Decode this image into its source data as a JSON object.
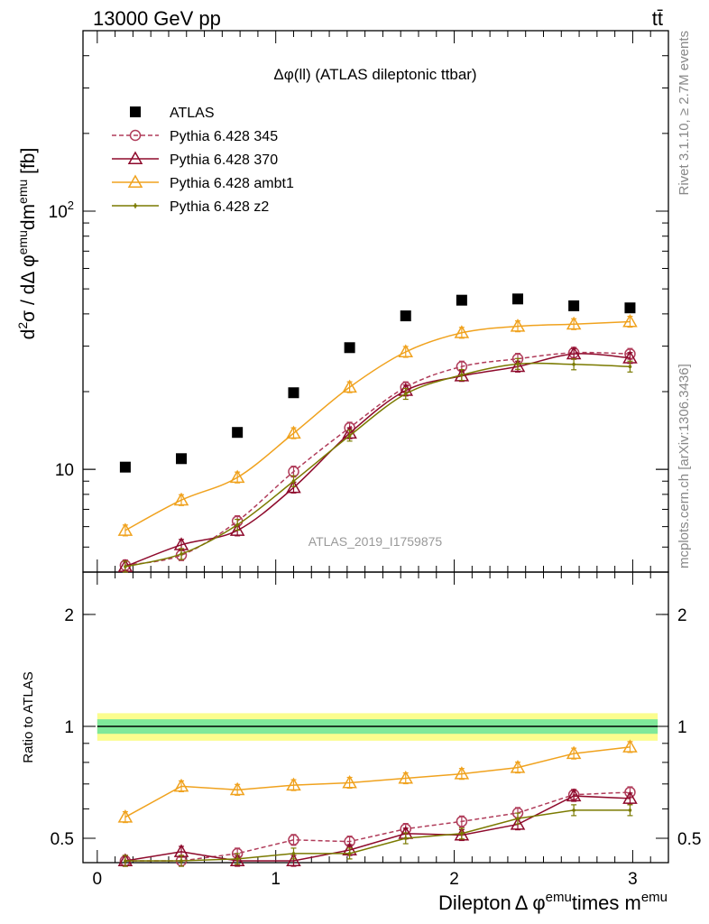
{
  "header": {
    "left": "13000 GeV pp",
    "right": "tt̄"
  },
  "side_labels": {
    "rivet": "Rivet 3.1.10, ≥ 2.7M events",
    "mcplots": "mcplots.cern.ch [arXiv:1306.3436]"
  },
  "chart_data": [
    {
      "type": "scatter",
      "title": "Δφ(ll) (ATLAS dileptonic ttbar)",
      "watermark": "ATLAS_2019_I1759875",
      "ylabel_parts": {
        "d2": "d",
        "sup2": "2",
        "sigma": "σ / dΔ φ",
        "sup_emu": "emu",
        "dm": "dm",
        "sup_emu2": "emu",
        "unit": " [fb]"
      },
      "yscale": "log",
      "ylim": [
        4,
        500
      ],
      "xlim": [
        -0.08,
        3.2
      ],
      "yticks": [
        {
          "value": 10,
          "label": "10"
        },
        {
          "value": 100,
          "label": "10",
          "sup": "2"
        }
      ],
      "x": [
        0.157,
        0.471,
        0.785,
        1.1,
        1.414,
        1.728,
        2.042,
        2.356,
        2.67,
        2.985
      ],
      "series": [
        {
          "name": "ATLAS",
          "color": "#000000",
          "marker": "square",
          "line": "none",
          "values": [
            10.2,
            11.0,
            13.9,
            19.8,
            29.6,
            39.3,
            45.2,
            45.7,
            43.0,
            42.2
          ]
        },
        {
          "name": "Pythia 6.428 345",
          "color": "#b03c5a",
          "marker": "circle",
          "line": "dashed",
          "values": [
            4.25,
            4.65,
            6.3,
            9.8,
            14.5,
            20.8,
            25.0,
            26.8,
            28.3,
            28.0
          ]
        },
        {
          "name": "Pythia 6.428 370",
          "color": "#8e0a2c",
          "marker": "triangle",
          "line": "solid",
          "values": [
            4.2,
            5.1,
            5.8,
            8.5,
            13.8,
            20.2,
            23.0,
            25.0,
            28.0,
            27.0
          ]
        },
        {
          "name": "Pythia 6.428 ambt1",
          "color": "#f0a21e",
          "marker": "triangle",
          "line": "solid",
          "values": [
            5.8,
            7.6,
            9.3,
            13.8,
            20.8,
            28.5,
            33.8,
            35.8,
            36.5,
            37.3
          ]
        },
        {
          "name": "Pythia 6.428 z2",
          "color": "#7a7a00",
          "marker": "dot",
          "line": "solid",
          "values": [
            4.2,
            4.7,
            6.1,
            9.0,
            13.5,
            19.6,
            23.2,
            25.6,
            25.5,
            25.0
          ]
        }
      ]
    },
    {
      "type": "scatter",
      "ylabel": "Ratio to ATLAS",
      "xlabel_parts": {
        "a": "Dilepton",
        "b": "Δ φ",
        "sup1": "emu",
        "c": "times m",
        "sup2": "emu"
      },
      "yscale": "log",
      "ylim": [
        0.43,
        2.6
      ],
      "xlim": [
        -0.08,
        3.2
      ],
      "yticks": [
        {
          "value": 0.5,
          "label": "0.5"
        },
        {
          "value": 1,
          "label": "1"
        },
        {
          "value": 2,
          "label": "2"
        }
      ],
      "xticks": [
        {
          "value": 0,
          "label": "0"
        },
        {
          "value": 1,
          "label": "1"
        },
        {
          "value": 2,
          "label": "2"
        },
        {
          "value": 3,
          "label": "3"
        }
      ],
      "band": {
        "inner": 0.045,
        "outer": 0.085
      },
      "x": [
        0.157,
        0.471,
        0.785,
        1.1,
        1.414,
        1.728,
        2.042,
        2.356,
        2.67,
        2.985
      ],
      "series": [
        {
          "name": "Pythia 6.428 345",
          "color": "#b03c5a",
          "marker": "circle",
          "line": "dashed",
          "values": [
            0.42,
            0.42,
            0.455,
            0.495,
            0.49,
            0.53,
            0.555,
            0.585,
            0.655,
            0.665
          ]
        },
        {
          "name": "Pythia 6.428 370",
          "color": "#8e0a2c",
          "marker": "triangle",
          "line": "solid",
          "values": [
            0.41,
            0.46,
            0.42,
            0.43,
            0.465,
            0.515,
            0.51,
            0.545,
            0.65,
            0.64
          ]
        },
        {
          "name": "Pythia 6.428 ambt1",
          "color": "#f0a21e",
          "marker": "triangle",
          "line": "solid",
          "values": [
            0.57,
            0.69,
            0.675,
            0.695,
            0.705,
            0.725,
            0.745,
            0.775,
            0.845,
            0.88
          ]
        },
        {
          "name": "Pythia 6.428 z2",
          "color": "#7a7a00",
          "marker": "dot",
          "line": "solid",
          "values": [
            0.41,
            0.425,
            0.44,
            0.455,
            0.455,
            0.5,
            0.515,
            0.565,
            0.595,
            0.595
          ]
        }
      ]
    }
  ]
}
